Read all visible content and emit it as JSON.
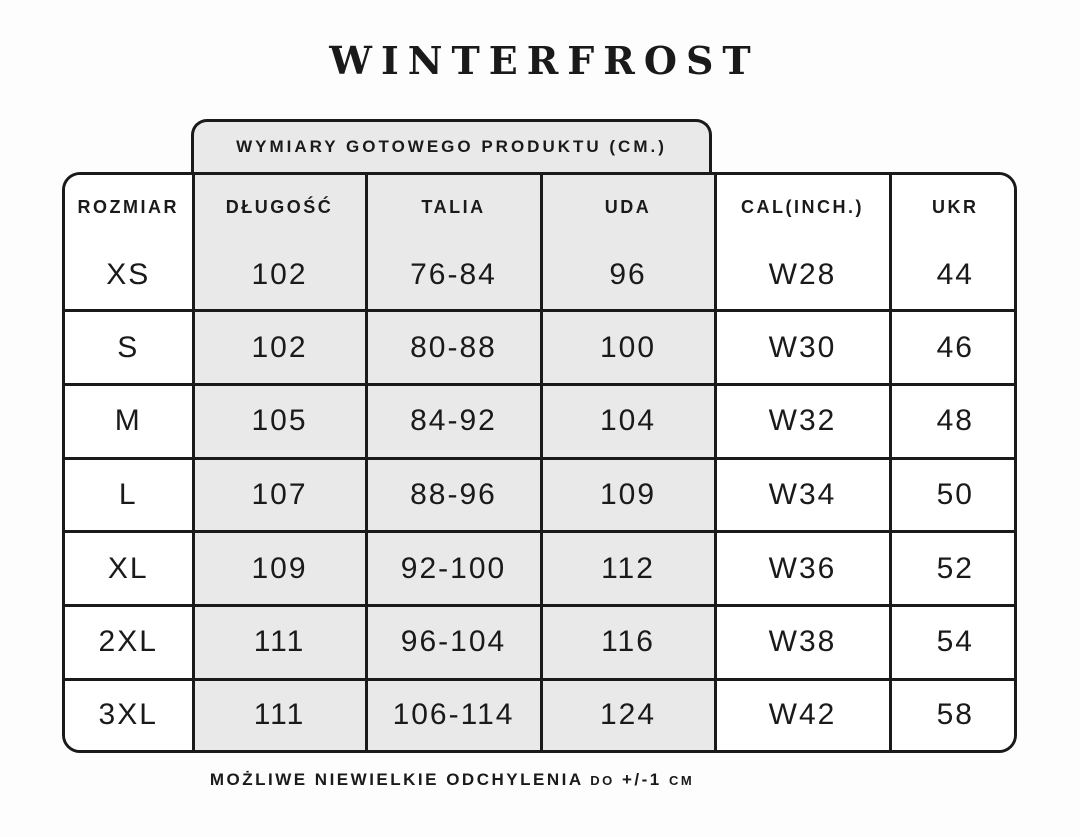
{
  "brand": "WINTERFROST",
  "banner_label": "WYMIARY GOTOWEGO PRODUKTU (CM.)",
  "footer": {
    "main": "MOŻLIWE NIEWIELKIE ODCHYLENIA",
    "small_do": "DO",
    "tolerance": "+/-1",
    "small_cm": "CM"
  },
  "colors": {
    "ink": "#1a1a1a",
    "cell_gray": "#e9e9e9",
    "page_bg": "#fdfdfd"
  },
  "chart_data": {
    "type": "table",
    "title": "WINTERFROST",
    "subtitle": "WYMIARY GOTOWEGO PRODUKTU (CM.)",
    "footnote": "MOŻLIWE NIEWIELKIE ODCHYLENIA DO +/-1 CM",
    "columns": [
      "ROZMIAR",
      "DŁUGOŚĆ",
      "TALIA",
      "UDA",
      "CAL(INCH.)",
      "UKR"
    ],
    "column_ids": [
      "rozmiar",
      "dlugosc",
      "talia",
      "uda",
      "cal-inch",
      "ukr"
    ],
    "cm_group_columns": [
      "DŁUGOŚĆ",
      "TALIA",
      "UDA"
    ],
    "rows": [
      [
        "XS",
        "102",
        "76-84",
        "96",
        "W28",
        "44"
      ],
      [
        "S",
        "102",
        "80-88",
        "100",
        "W30",
        "46"
      ],
      [
        "M",
        "105",
        "84-92",
        "104",
        "W32",
        "48"
      ],
      [
        "L",
        "107",
        "88-96",
        "109",
        "W34",
        "50"
      ],
      [
        "XL",
        "109",
        "92-100",
        "112",
        "W36",
        "52"
      ],
      [
        "2XL",
        "111",
        "96-104",
        "116",
        "W38",
        "54"
      ],
      [
        "3XL",
        "111",
        "106-114",
        "124",
        "W42",
        "58"
      ]
    ]
  }
}
